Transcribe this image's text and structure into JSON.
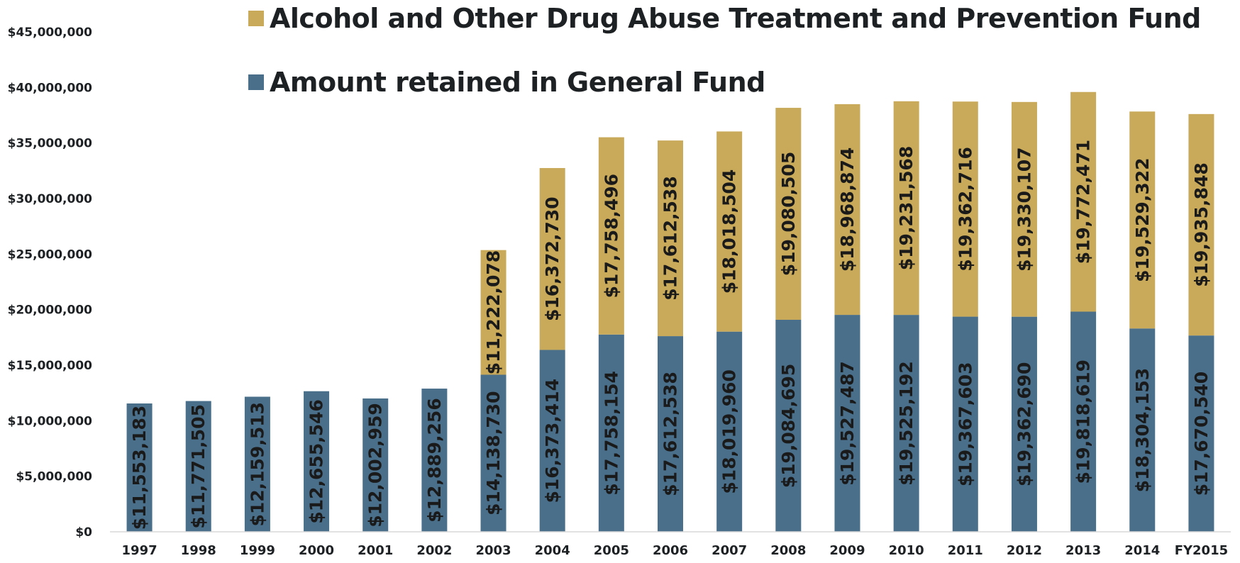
{
  "chart_data": {
    "type": "bar",
    "stacked": true,
    "categories": [
      "1997",
      "1998",
      "1999",
      "2000",
      "2001",
      "2002",
      "2003",
      "2004",
      "2005",
      "2006",
      "2007",
      "2008",
      "2009",
      "2010",
      "2011",
      "2012",
      "2013",
      "2014",
      "FY2015"
    ],
    "series": [
      {
        "name": "Amount retained in General Fund",
        "color": "#4a6f8a",
        "values": [
          11553183,
          11771505,
          12159513,
          12655546,
          12002959,
          12889256,
          14138730,
          16373414,
          17758154,
          17612538,
          18019960,
          19084695,
          19527487,
          19525192,
          19367603,
          19362690,
          19818619,
          18304153,
          17670540
        ],
        "labels": [
          "$11,553,183",
          "$11,771,505",
          "$12,159,513",
          "$12,655,546",
          "$12,002,959",
          "$12,889,256",
          "$14,138,730",
          "$16,373,414",
          "$17,758,154",
          "$17,612,538",
          "$18,019,960",
          "$19,084,695",
          "$19,527,487",
          "$19,525,192",
          "$19,367,603",
          "$19,362,690",
          "$19,818,619",
          "$18,304,153",
          "$17,670,540"
        ]
      },
      {
        "name": "Alcohol and Other Drug Abuse Treatment and Prevention Fund",
        "color": "#c8aa5a",
        "values": [
          0,
          0,
          0,
          0,
          0,
          0,
          11222078,
          16372730,
          17758496,
          17612538,
          18018504,
          19080505,
          18968874,
          19231568,
          19362716,
          19330107,
          19772471,
          19529322,
          19935848
        ],
        "labels": [
          "",
          "",
          "",
          "",
          "",
          "",
          "$11,222,078",
          "$16,372,730",
          "$17,758,496",
          "$17,612,538",
          "$18,018,504",
          "$19,080,505",
          "$18,968,874",
          "$19,231,568",
          "$19,362,716",
          "$19,330,107",
          "$19,772,471",
          "$19,529,322",
          "$19,935,848"
        ]
      }
    ],
    "ylim": [
      0,
      45000000
    ],
    "yticks": [
      0,
      5000000,
      10000000,
      15000000,
      20000000,
      25000000,
      30000000,
      35000000,
      40000000,
      45000000
    ],
    "ytick_labels": [
      "$0",
      "$5,000,000",
      "$10,000,000",
      "$15,000,000",
      "$20,000,000",
      "$25,000,000",
      "$30,000,000",
      "$35,000,000",
      "$40,000,000",
      "$45,000,000"
    ],
    "legend": {
      "placement": "top-left",
      "entries": [
        {
          "label": "Alcohol and Other Drug Abuse Treatment and Prevention Fund",
          "color": "#c8aa5a"
        },
        {
          "label": "Amount retained in General Fund",
          "color": "#4a6f8a"
        }
      ]
    },
    "grid": false,
    "title": "",
    "xlabel": "",
    "ylabel": ""
  }
}
